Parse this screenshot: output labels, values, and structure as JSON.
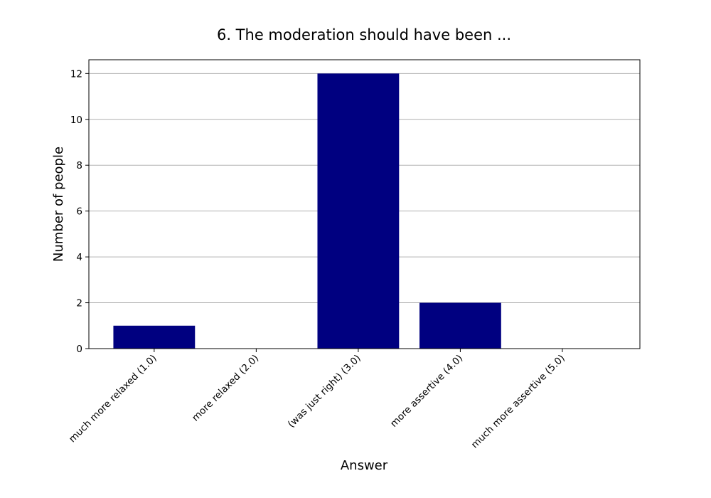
{
  "chart_data": {
    "type": "bar",
    "title": "6. The moderation should have been ...",
    "xlabel": "Answer",
    "ylabel": "Number of people",
    "categories": [
      "much more relaxed (1.0)",
      "more relaxed (2.0)",
      "(was just right) (3.0)",
      "more assertive (4.0)",
      "much more assertive (5.0)"
    ],
    "values": [
      1,
      0,
      12,
      2,
      0
    ],
    "ylim": [
      0,
      12.6
    ],
    "yticks": [
      0,
      2,
      4,
      6,
      8,
      10,
      12
    ],
    "grid": "y",
    "bar_color": "#000080"
  }
}
